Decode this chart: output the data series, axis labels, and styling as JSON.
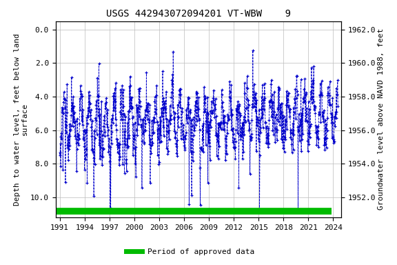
{
  "title": "USGS 442943072094201 VT-WBW    9",
  "ylabel_left": "Depth to water level, feet below land\nsurface",
  "ylabel_right": "Groundwater level above NAVD 1988, feet",
  "xlim": [
    1990.5,
    2025.0
  ],
  "ylim_left": [
    11.2,
    -0.5
  ],
  "ylim_right": [
    1950.8,
    1962.5
  ],
  "xticks": [
    1991,
    1994,
    1997,
    2000,
    2003,
    2006,
    2009,
    2012,
    2015,
    2018,
    2021,
    2024
  ],
  "yticks_left": [
    0.0,
    2.0,
    4.0,
    6.0,
    8.0,
    10.0
  ],
  "yticks_right": [
    1952.0,
    1954.0,
    1956.0,
    1958.0,
    1960.0,
    1962.0
  ],
  "data_color": "#0000cc",
  "bar_color": "#00bb00",
  "background_color": "#ffffff",
  "grid_color": "#bbbbbb",
  "title_fontsize": 10,
  "axis_fontsize": 8,
  "tick_fontsize": 8,
  "legend_label": "Period of approved data",
  "land_surface_elevation": 1962.0,
  "seed": 42,
  "green_bar_y": 10.85
}
